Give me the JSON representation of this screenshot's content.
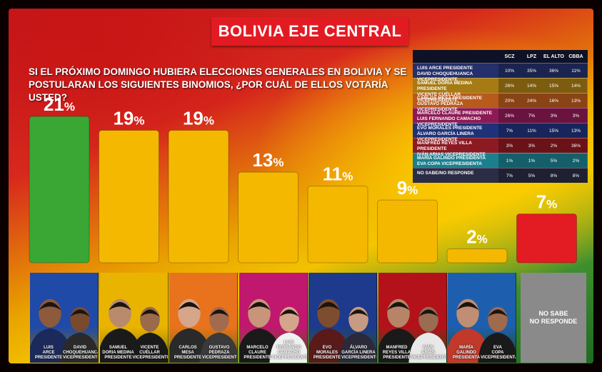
{
  "title": "BOLIVIA EJE CENTRAL",
  "question": "SI EL PRÓXIMO DOMINGO HUBIERA ELECCIONES GENERALES EN BOLIVIA Y SE POSTULARAN LOS SIGUIENTES BINOMIOS, ¿POR CUÁL DE ELLOS VOTARÍA USTED?",
  "chart_data": {
    "type": "bar",
    "unit": "%",
    "ylim": [
      0,
      21
    ],
    "bars": [
      {
        "value": 21,
        "color": "#3aa634"
      },
      {
        "value": 19,
        "color": "#f5b800"
      },
      {
        "value": 19,
        "color": "#f5b800"
      },
      {
        "value": 13,
        "color": "#f5b800"
      },
      {
        "value": 11,
        "color": "#f5b800"
      },
      {
        "value": 9,
        "color": "#f5b800"
      },
      {
        "value": 2,
        "color": "#f5b800"
      },
      {
        "value": 7,
        "color": "#e31b23"
      }
    ]
  },
  "candidates": [
    {
      "bg": "#1f4aa8",
      "pres": "LUIS\nARCE\nPRESIDENTE",
      "vice": "DAVID\nCHOQUEHUANCA\nVICEPRESIDENTE",
      "skin1": "#8d5a3b",
      "skin2": "#7a4a2e",
      "suit1": "#1b2a5a",
      "suit2": "#2a2a2a"
    },
    {
      "bg": "#e8b400",
      "pres": "SAMUEL\nDORIA MEDINA\nPRESIDENTE",
      "vice": "VICENTE\nCUÉLLAR\nVICEPRESIDENTE",
      "skin1": "#b98a6b",
      "skin2": "#9a6a4a",
      "suit1": "#1a1a1a",
      "suit2": "#1a1a1a"
    },
    {
      "bg": "#e8731c",
      "pres": "CARLOS\nMESA\nPRESIDENTE",
      "vice": "GUSTAVO\nPEDRAZA\nVICEPRESIDENTE",
      "skin1": "#d6a58a",
      "skin2": "#a36b4d",
      "suit1": "#2a2a2a",
      "suit2": "#3a3a3a"
    },
    {
      "bg": "#c0186e",
      "pres": "MARCELO\nCLAURE\nPRESIDENTE",
      "vice": "LUIS FERNANDO\nCAMACHO\nVICEPRESIDENTE",
      "skin1": "#c9957a",
      "skin2": "#d4a58a",
      "suit1": "#1a1a1a",
      "suit2": "#f0f0f0"
    },
    {
      "bg": "#1d3a8c",
      "pres": "EVO\nMORALES\nPRESIDENTE",
      "vice": "ÁLVARO\nGARCÍA LINERA\nVICEPRESIDENTE",
      "skin1": "#7e4d30",
      "skin2": "#c79a82",
      "suit1": "#5a1a1a",
      "suit2": "#2a2a3a"
    },
    {
      "bg": "#b3121a",
      "pres": "MANFRED\nREYES VILLA\nPRESIDENTE",
      "vice": "IVÁN\nARIAS\nVICEPRESIDENTE",
      "skin1": "#b88467",
      "skin2": "#9a6c52",
      "suit1": "#1a1a1a",
      "suit2": "#e8e8e8"
    },
    {
      "bg": "#1d5fae",
      "pres": "MARÍA\nGALINDO\nPRESIDENTA",
      "vice": "EVA\nCOPA\nVICEPRESIDENTA",
      "skin1": "#c08e72",
      "skin2": "#a06a4c",
      "suit1": "#c0392b",
      "suit2": "#1a1a1a"
    }
  ],
  "nosabe_label": "NO SABE\nNO RESPONDE",
  "table": {
    "headers": [
      "SCZ",
      "LPZ",
      "EL ALTO",
      "CBBA"
    ],
    "rows": [
      {
        "name": "LUIS ARCE PRESIDENTE\nDAVID CHOQUEHUANCA VICEPRESIDENTE",
        "bg": "#24306b",
        "vals": [
          "10%",
          "35%",
          "36%",
          "11%"
        ]
      },
      {
        "name": "SAMUEL DORIA MEDINA PRESIDENTE\nVICENTE CUÉLLAR VICEPRESIDENTE",
        "bg": "#a67b14",
        "vals": [
          "26%",
          "14%",
          "15%",
          "14%"
        ]
      },
      {
        "name": "CARLOS MESA PRESIDENTE\nGUSTAVO PEDRAZA VICEPRESIDENTE",
        "bg": "#b75a1c",
        "vals": [
          "20%",
          "24%",
          "16%",
          "13%"
        ]
      },
      {
        "name": "MARCELO CLAURE PRESIDENTE\nLUIS FERNANDO CAMACHO VICEPRESIDENTE",
        "bg": "#8e1a55",
        "vals": [
          "26%",
          "7%",
          "3%",
          "3%"
        ]
      },
      {
        "name": "EVO MORALES PRESIDENTE\nÁLVARO GARCÍA LINERA VICEPRESIDENTE",
        "bg": "#1f3278",
        "vals": [
          "7%",
          "11%",
          "15%",
          "13%"
        ]
      },
      {
        "name": "MANFRED REYES VILLA PRESIDENTE\nIVÁN ARIAS VICEPRESIDENTE",
        "bg": "#8c1a22",
        "vals": [
          "3%",
          "3%",
          "2%",
          "36%"
        ]
      },
      {
        "name": "MARÍA GALINDO PRESIDENTA\nEVA COPA VICEPRESIDENTA",
        "bg": "#1c7f8e",
        "vals": [
          "1%",
          "1%",
          "5%",
          "2%"
        ]
      },
      {
        "name": "NO SABE/NO RESPONDE",
        "bg": "#2a2d45",
        "vals": [
          "7%",
          "5%",
          "8%",
          "8%"
        ]
      }
    ]
  }
}
